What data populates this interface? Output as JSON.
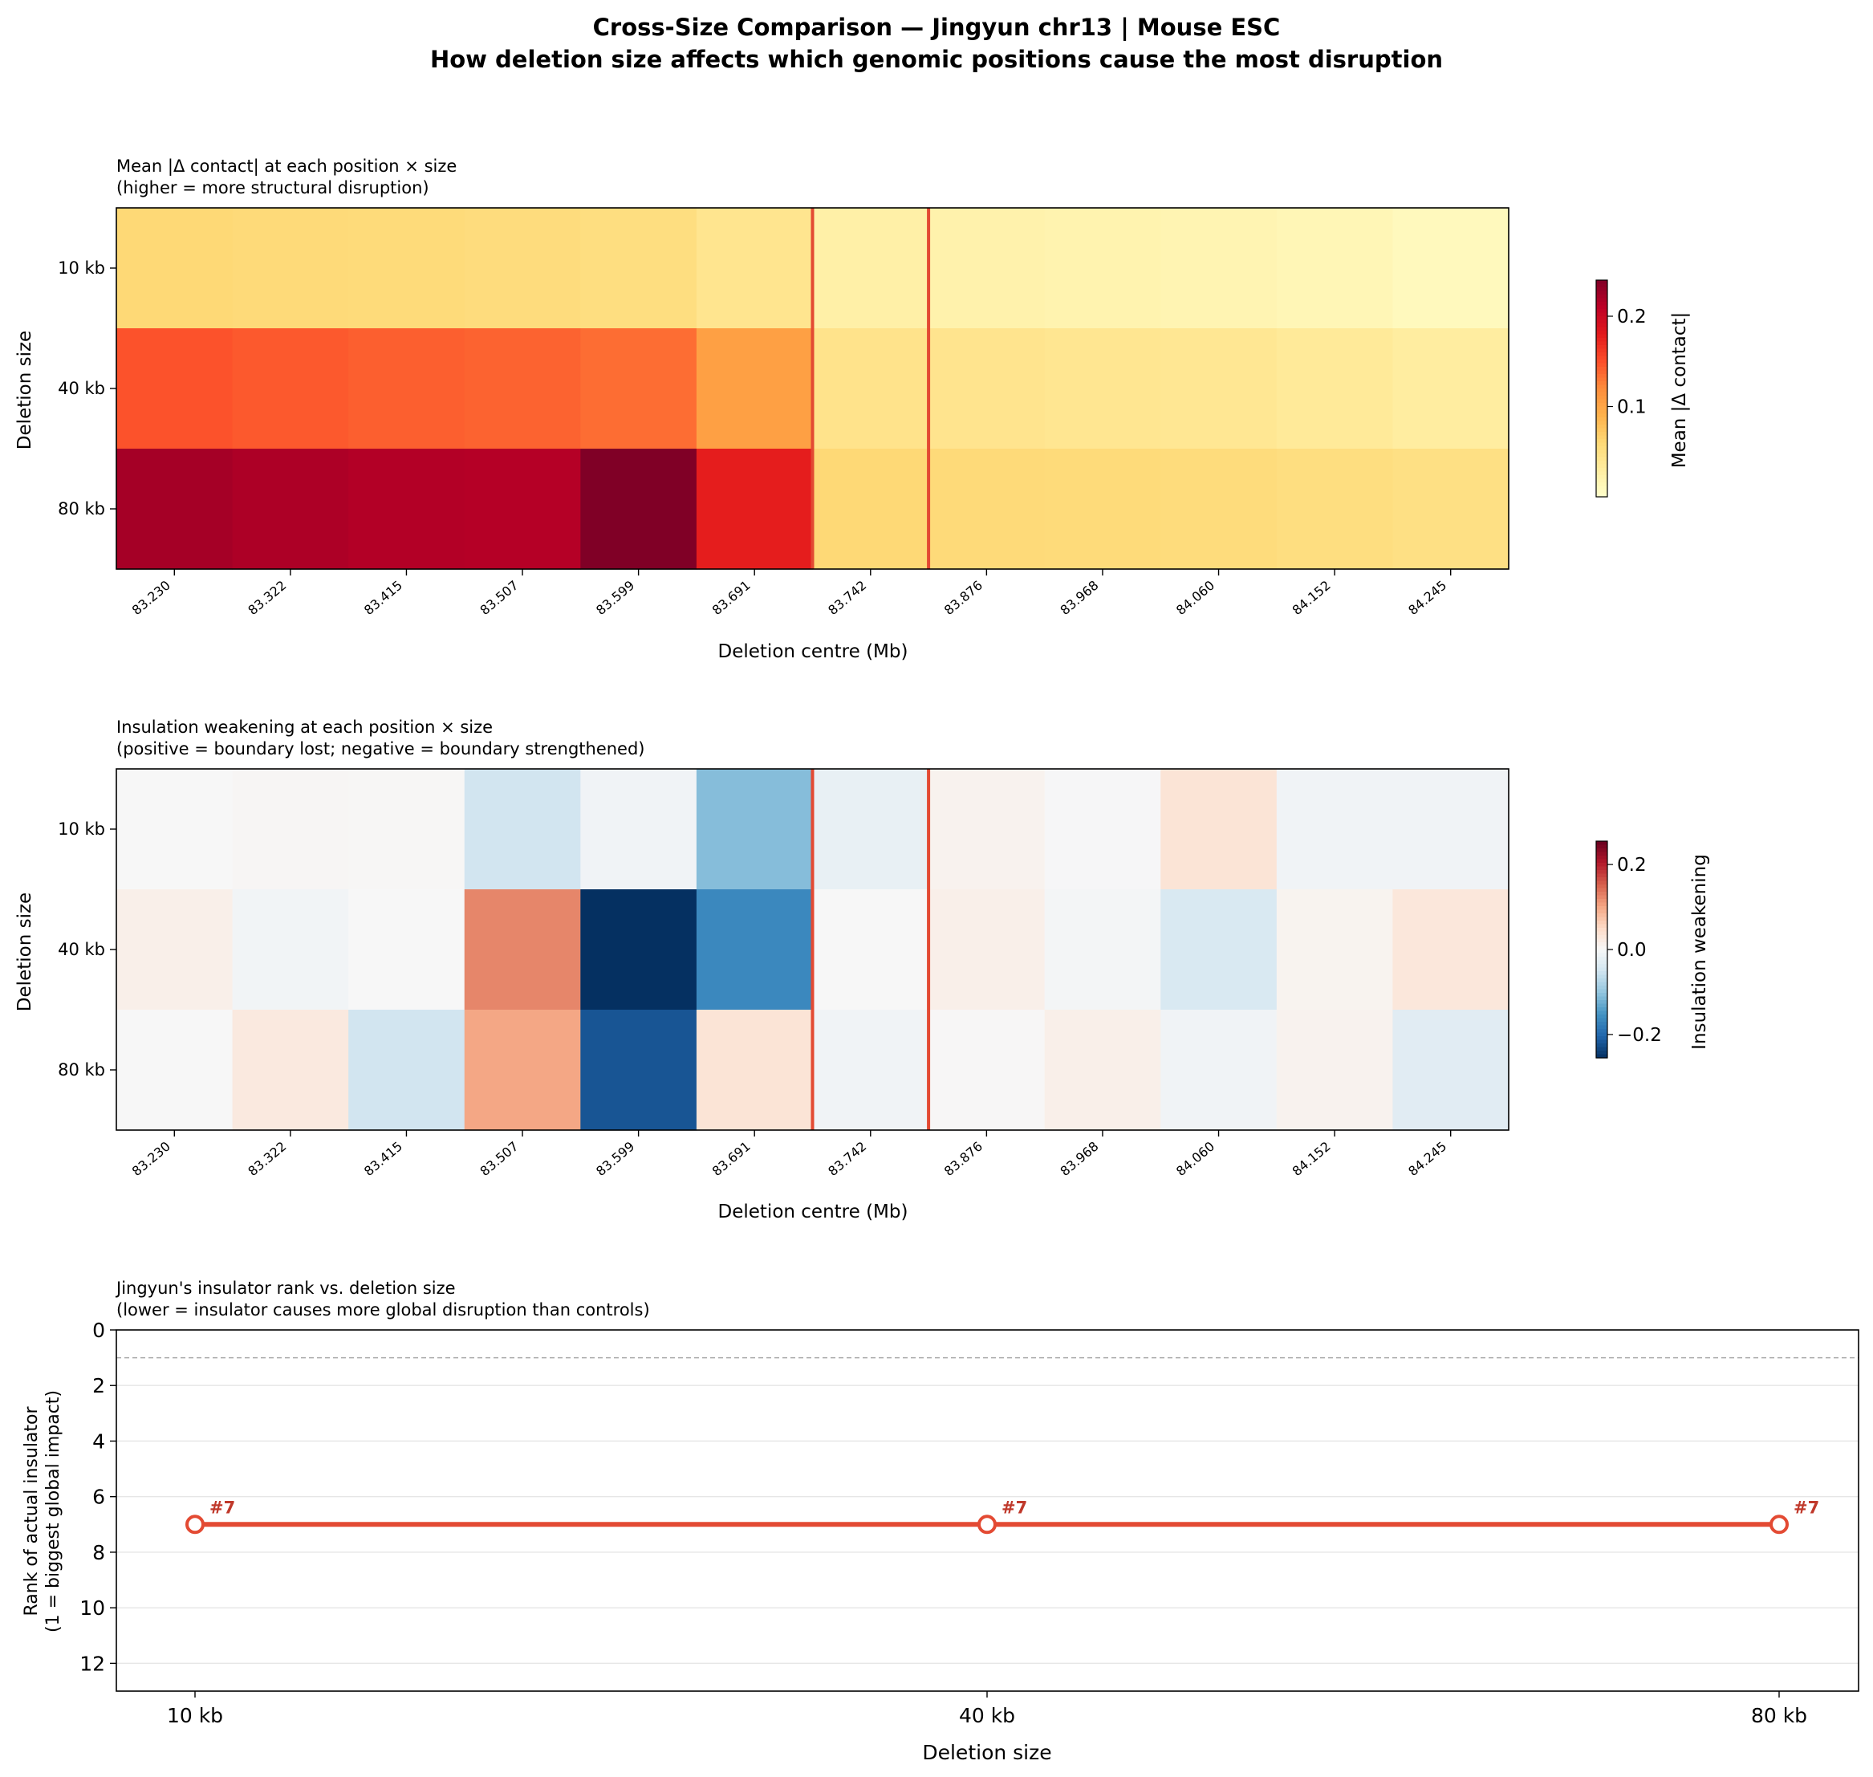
{
  "suptitle": {
    "line1": "Cross-Size Comparison — Jingyun chr13 | Mouse ESC",
    "line2": "How deletion size affects which genomic positions cause the most disruption"
  },
  "colors": {
    "insulator_line": "#e34a33",
    "rank_line": "#e34a33",
    "reference_dash": "#aaaaaa"
  },
  "chart_data": [
    {
      "type": "heatmap",
      "title_line1": "Mean |Δ contact| at each position × size",
      "title_line2": "(higher = more structural disruption)",
      "xlabel": "Deletion centre (Mb)",
      "ylabel": "Deletion size",
      "x_categories": [
        "83.230",
        "83.322",
        "83.415",
        "83.507",
        "83.599",
        "83.691",
        "83.742",
        "83.876",
        "83.968",
        "84.060",
        "84.152",
        "84.245"
      ],
      "y_categories": [
        "10 kb",
        "40 kb",
        "80 kb"
      ],
      "values": [
        [
          0.06,
          0.058,
          0.057,
          0.055,
          0.053,
          0.042,
          0.025,
          0.022,
          0.02,
          0.018,
          0.015,
          0.01
        ],
        [
          0.148,
          0.145,
          0.142,
          0.14,
          0.135,
          0.105,
          0.045,
          0.043,
          0.041,
          0.039,
          0.035,
          0.03
        ],
        [
          0.222,
          0.218,
          0.215,
          0.214,
          0.24,
          0.178,
          0.06,
          0.058,
          0.057,
          0.056,
          0.053,
          0.05
        ]
      ],
      "colormap": "YlOrRd",
      "vmin": 0.0,
      "vmax": 0.24,
      "colorbar_label": "Mean |Δ contact|",
      "colorbar_ticks": [
        "0.1",
        "0.2"
      ],
      "colorbar_tick_values": [
        0.1,
        0.2
      ],
      "insulator_span_index": 6
    },
    {
      "type": "heatmap",
      "title_line1": "Insulation weakening at each position × size",
      "title_line2": "(positive = boundary lost; negative = boundary strengthened)",
      "xlabel": "Deletion centre (Mb)",
      "ylabel": "Deletion size",
      "x_categories": [
        "83.230",
        "83.322",
        "83.415",
        "83.507",
        "83.599",
        "83.691",
        "83.742",
        "83.876",
        "83.968",
        "84.060",
        "84.152",
        "84.245"
      ],
      "y_categories": [
        "10 kb",
        "40 kb",
        "80 kb"
      ],
      "values": [
        [
          0.0,
          0.003,
          0.002,
          -0.05,
          -0.01,
          -0.11,
          -0.02,
          0.01,
          -0.002,
          0.035,
          -0.01,
          -0.01
        ],
        [
          0.015,
          -0.008,
          0.0,
          0.125,
          -0.255,
          -0.165,
          0.0,
          0.015,
          -0.005,
          -0.04,
          0.008,
          0.03
        ],
        [
          0.0,
          0.025,
          -0.05,
          0.1,
          -0.22,
          0.035,
          -0.01,
          0.001,
          0.015,
          -0.01,
          0.01,
          -0.03
        ]
      ],
      "colormap": "RdBu_r",
      "vmin": -0.255,
      "vmax": 0.255,
      "colorbar_label": "Insulation weakening",
      "colorbar_ticks": [
        "−0.2",
        "0.0",
        "0.2"
      ],
      "colorbar_tick_values": [
        -0.2,
        0.0,
        0.2
      ],
      "insulator_span_index": 6
    },
    {
      "type": "line",
      "title_line1": "Jingyun's insulator rank vs. deletion size",
      "title_line2": "(lower = insulator causes more global disruption than controls)",
      "xlabel": "Deletion size",
      "ylabel_line1": "Rank of actual insulator",
      "ylabel_line2": "(1 = biggest global impact)",
      "categories": [
        "10 kb",
        "40 kb",
        "80 kb"
      ],
      "values": [
        7,
        7,
        7
      ],
      "point_labels": [
        "#7",
        "#7",
        "#7"
      ],
      "ylim": [
        13,
        0
      ],
      "yticks": [
        "0",
        "2",
        "4",
        "6",
        "8",
        "10",
        "12"
      ],
      "ytick_values": [
        0,
        2,
        4,
        6,
        8,
        10,
        12
      ],
      "reference_line_value": 1
    }
  ]
}
